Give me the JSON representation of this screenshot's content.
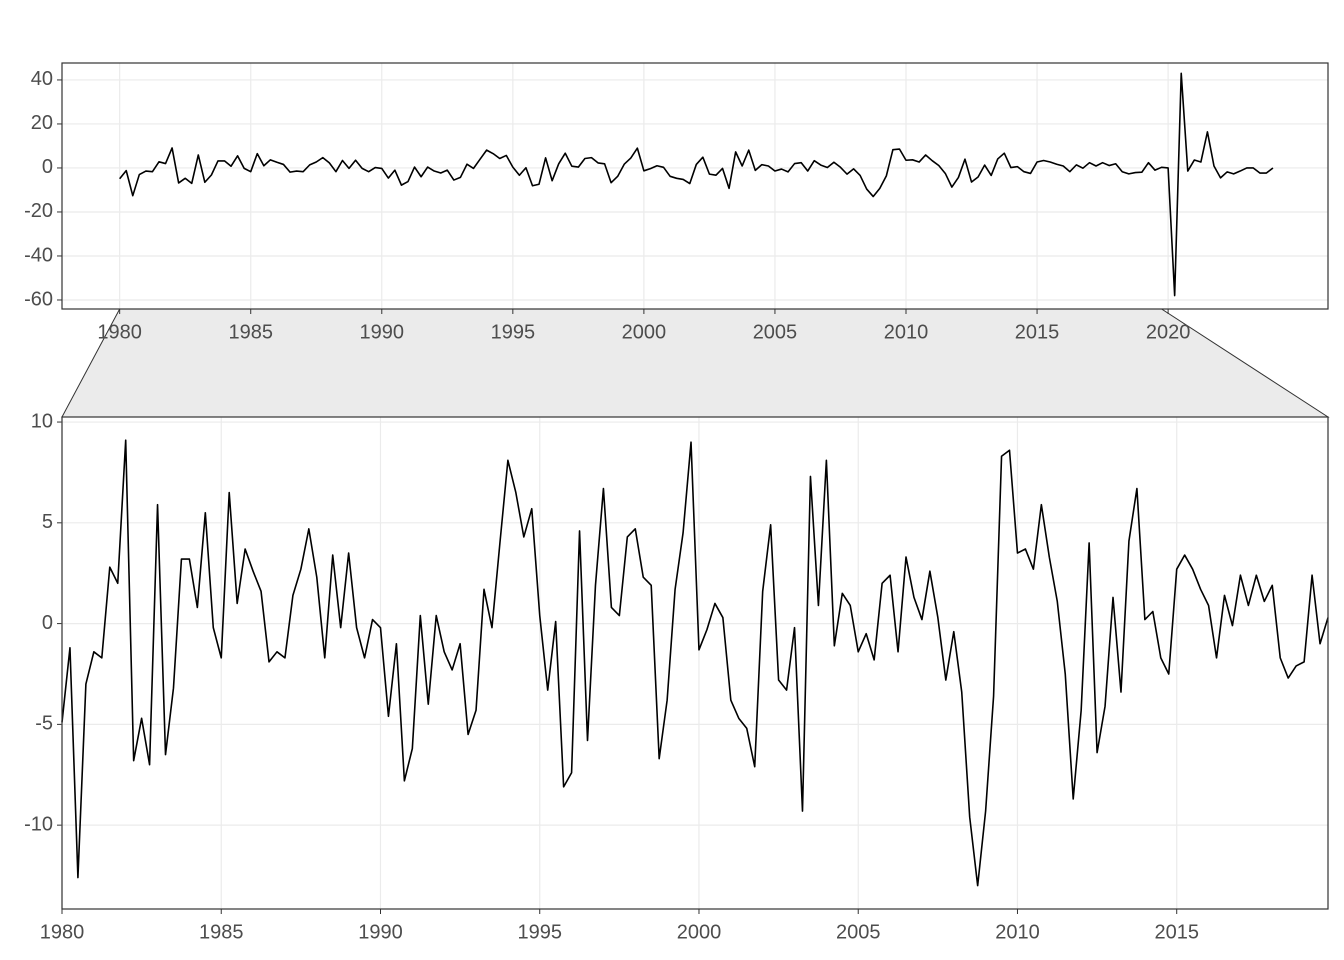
{
  "chart_data": [
    {
      "type": "line",
      "color": "#000000",
      "grid": true,
      "xlim": [
        1977.8,
        2026.1
      ],
      "ylim": [
        -64.1,
        47.7
      ],
      "xticks": [
        1980,
        1985,
        1990,
        1995,
        2000,
        2005,
        2010,
        2015,
        2020
      ],
      "yticks": [
        -60,
        -40,
        -20,
        0,
        20,
        40
      ],
      "x": [
        1980,
        1980.25,
        1980.5,
        1980.75,
        1981,
        1981.25,
        1981.5,
        1981.75,
        1982,
        1982.25,
        1982.5,
        1982.75,
        1983,
        1983.25,
        1983.5,
        1983.75,
        1984,
        1984.25,
        1984.5,
        1984.75,
        1985,
        1985.25,
        1985.5,
        1985.75,
        1986,
        1986.25,
        1986.5,
        1986.75,
        1987,
        1987.25,
        1987.5,
        1987.75,
        1988,
        1988.25,
        1988.5,
        1988.75,
        1989,
        1989.25,
        1989.5,
        1989.75,
        1990,
        1990.25,
        1990.5,
        1990.75,
        1991,
        1991.25,
        1991.5,
        1991.75,
        1992,
        1992.25,
        1992.5,
        1992.75,
        1993,
        1993.25,
        1993.5,
        1993.75,
        1994,
        1994.25,
        1994.5,
        1994.75,
        1995,
        1995.25,
        1995.5,
        1995.75,
        1996,
        1996.25,
        1996.5,
        1996.75,
        1997,
        1997.25,
        1997.5,
        1997.75,
        1998,
        1998.25,
        1998.5,
        1998.75,
        1999,
        1999.25,
        1999.5,
        1999.75,
        2000,
        2000.25,
        2000.5,
        2000.75,
        2001,
        2001.25,
        2001.5,
        2001.75,
        2002,
        2002.25,
        2002.5,
        2002.75,
        2003,
        2003.25,
        2003.5,
        2003.75,
        2004,
        2004.25,
        2004.5,
        2004.75,
        2005,
        2005.25,
        2005.5,
        2005.75,
        2006,
        2006.25,
        2006.5,
        2006.75,
        2007,
        2007.25,
        2007.5,
        2007.75,
        2008,
        2008.25,
        2008.5,
        2008.75,
        2009,
        2009.25,
        2009.5,
        2009.75,
        2010,
        2010.25,
        2010.5,
        2010.75,
        2011,
        2011.25,
        2011.5,
        2011.75,
        2012,
        2012.25,
        2012.5,
        2012.75,
        2013,
        2013.25,
        2013.5,
        2013.75,
        2014,
        2014.25,
        2014.5,
        2014.75,
        2015,
        2015.25,
        2015.5,
        2015.75,
        2016,
        2016.25,
        2016.5,
        2016.75,
        2017,
        2017.25,
        2017.5,
        2017.75,
        2018,
        2018.25,
        2018.5,
        2018.75,
        2019,
        2019.25,
        2019.5,
        2019.75,
        2020,
        2020.25,
        2020.5,
        2020.75,
        2021,
        2021.25,
        2021.5,
        2021.75,
        2022,
        2022.25,
        2022.5,
        2022.75,
        2023,
        2023.25,
        2023.5,
        2023.75,
        2024
      ],
      "values": [
        -4.9,
        -1.2,
        -12.6,
        -3.0,
        -1.4,
        -1.7,
        2.8,
        2.0,
        9.1,
        -6.8,
        -4.7,
        -7.0,
        5.9,
        -6.5,
        -3.2,
        3.2,
        3.2,
        0.8,
        5.5,
        -0.2,
        -1.7,
        6.5,
        1.0,
        3.7,
        2.6,
        1.6,
        -1.9,
        -1.4,
        -1.7,
        1.4,
        2.7,
        4.7,
        2.3,
        -1.7,
        3.4,
        -0.2,
        3.5,
        -0.2,
        -1.7,
        0.2,
        -0.2,
        -4.6,
        -1.0,
        -7.8,
        -6.2,
        0.4,
        -4.0,
        0.4,
        -1.4,
        -2.3,
        -1.0,
        -5.5,
        -4.3,
        1.7,
        -0.2,
        4.0,
        8.1,
        6.5,
        4.3,
        5.7,
        0.4,
        -3.3,
        0.1,
        -8.1,
        -7.4,
        4.6,
        -5.8,
        1.9,
        6.7,
        0.8,
        0.4,
        4.3,
        4.7,
        2.3,
        1.9,
        -6.7,
        -3.8,
        1.7,
        4.5,
        9.0,
        -1.3,
        -0.3,
        1.0,
        0.3,
        -3.8,
        -4.7,
        -5.2,
        -7.1,
        1.6,
        4.9,
        -2.8,
        -3.3,
        -0.2,
        -9.3,
        7.3,
        0.9,
        8.1,
        -1.1,
        1.5,
        0.9,
        -1.4,
        -0.5,
        -1.8,
        2.0,
        2.4,
        -1.4,
        3.3,
        1.3,
        0.2,
        2.6,
        0.3,
        -2.8,
        -0.4,
        -3.4,
        -9.6,
        -13.0,
        -9.3,
        -3.6,
        8.3,
        8.6,
        3.5,
        3.7,
        2.7,
        5.9,
        3.3,
        1.1,
        -2.5,
        -8.7,
        -4.3,
        4.0,
        -6.4,
        -4.1,
        1.3,
        -3.4,
        4.1,
        6.7,
        0.2,
        0.6,
        -1.7,
        -2.5,
        2.7,
        3.4,
        2.7,
        1.7,
        0.9,
        -1.7,
        1.4,
        -0.1,
        2.4,
        0.9,
        2.4,
        1.1,
        1.9,
        -1.7,
        -2.7,
        -2.1,
        -1.9,
        2.4,
        -1.0,
        0.3,
        0,
        -58,
        43,
        -1.4,
        3.6,
        2.7,
        16.4,
        0.9,
        -4.5,
        -1.8,
        -2.7,
        -1.4,
        0,
        0,
        -2.3,
        -2.3,
        0
      ]
    },
    {
      "type": "line",
      "color": "#000000",
      "grid": true,
      "xlim": [
        1980,
        2019.75
      ],
      "ylim": [
        -14.16,
        10.25
      ],
      "xticks": [
        1980,
        1985,
        1990,
        1995,
        2000,
        2005,
        2010,
        2015
      ],
      "yticks": [
        -10,
        -5,
        0,
        5,
        10
      ],
      "x": [
        1980,
        1980.25,
        1980.5,
        1980.75,
        1981,
        1981.25,
        1981.5,
        1981.75,
        1982,
        1982.25,
        1982.5,
        1982.75,
        1983,
        1983.25,
        1983.5,
        1983.75,
        1984,
        1984.25,
        1984.5,
        1984.75,
        1985,
        1985.25,
        1985.5,
        1985.75,
        1986,
        1986.25,
        1986.5,
        1986.75,
        1987,
        1987.25,
        1987.5,
        1987.75,
        1988,
        1988.25,
        1988.5,
        1988.75,
        1989,
        1989.25,
        1989.5,
        1989.75,
        1990,
        1990.25,
        1990.5,
        1990.75,
        1991,
        1991.25,
        1991.5,
        1991.75,
        1992,
        1992.25,
        1992.5,
        1992.75,
        1993,
        1993.25,
        1993.5,
        1993.75,
        1994,
        1994.25,
        1994.5,
        1994.75,
        1995,
        1995.25,
        1995.5,
        1995.75,
        1996,
        1996.25,
        1996.5,
        1996.75,
        1997,
        1997.25,
        1997.5,
        1997.75,
        1998,
        1998.25,
        1998.5,
        1998.75,
        1999,
        1999.25,
        1999.5,
        1999.75,
        2000,
        2000.25,
        2000.5,
        2000.75,
        2001,
        2001.25,
        2001.5,
        2001.75,
        2002,
        2002.25,
        2002.5,
        2002.75,
        2003,
        2003.25,
        2003.5,
        2003.75,
        2004,
        2004.25,
        2004.5,
        2004.75,
        2005,
        2005.25,
        2005.5,
        2005.75,
        2006,
        2006.25,
        2006.5,
        2006.75,
        2007,
        2007.25,
        2007.5,
        2007.75,
        2008,
        2008.25,
        2008.5,
        2008.75,
        2009,
        2009.25,
        2009.5,
        2009.75,
        2010,
        2010.25,
        2010.5,
        2010.75,
        2011,
        2011.25,
        2011.5,
        2011.75,
        2012,
        2012.25,
        2012.5,
        2012.75,
        2013,
        2013.25,
        2013.5,
        2013.75,
        2014,
        2014.25,
        2014.5,
        2014.75,
        2015,
        2015.25,
        2015.5,
        2015.75,
        2016,
        2016.25,
        2016.5,
        2016.75,
        2017,
        2017.25,
        2017.5,
        2017.75,
        2018,
        2018.25,
        2018.5,
        2018.75,
        2019,
        2019.25,
        2019.5,
        2019.75
      ],
      "values": [
        -4.9,
        -1.2,
        -12.6,
        -3.0,
        -1.4,
        -1.7,
        2.8,
        2.0,
        9.1,
        -6.8,
        -4.7,
        -7.0,
        5.9,
        -6.5,
        -3.2,
        3.2,
        3.2,
        0.8,
        5.5,
        -0.2,
        -1.7,
        6.5,
        1.0,
        3.7,
        2.6,
        1.6,
        -1.9,
        -1.4,
        -1.7,
        1.4,
        2.7,
        4.7,
        2.3,
        -1.7,
        3.4,
        -0.2,
        3.5,
        -0.2,
        -1.7,
        0.2,
        -0.2,
        -4.6,
        -1.0,
        -7.8,
        -6.2,
        0.4,
        -4.0,
        0.4,
        -1.4,
        -2.3,
        -1.0,
        -5.5,
        -4.3,
        1.7,
        -0.2,
        4.0,
        8.1,
        6.5,
        4.3,
        5.7,
        0.4,
        -3.3,
        0.1,
        -8.1,
        -7.4,
        4.6,
        -5.8,
        1.9,
        6.7,
        0.8,
        0.4,
        4.3,
        4.7,
        2.3,
        1.9,
        -6.7,
        -3.8,
        1.7,
        4.5,
        9.0,
        -1.3,
        -0.3,
        1.0,
        0.3,
        -3.8,
        -4.7,
        -5.2,
        -7.1,
        1.6,
        4.9,
        -2.8,
        -3.3,
        -0.2,
        -9.3,
        7.3,
        0.9,
        8.1,
        -1.1,
        1.5,
        0.9,
        -1.4,
        -0.5,
        -1.8,
        2.0,
        2.4,
        -1.4,
        3.3,
        1.3,
        0.2,
        2.6,
        0.3,
        -2.8,
        -0.4,
        -3.4,
        -9.6,
        -13.0,
        -9.3,
        -3.6,
        8.3,
        8.6,
        3.5,
        3.7,
        2.7,
        5.9,
        3.3,
        1.1,
        -2.5,
        -8.7,
        -4.3,
        4.0,
        -6.4,
        -4.1,
        1.3,
        -3.4,
        4.1,
        6.7,
        0.2,
        0.6,
        -1.7,
        -2.5,
        2.7,
        3.4,
        2.7,
        1.7,
        0.9,
        -1.7,
        1.4,
        -0.1,
        2.4,
        0.9,
        2.4,
        1.1,
        1.9,
        -1.7,
        -2.7,
        -2.1,
        -1.9,
        2.4,
        -1.0,
        0.3
      ]
    }
  ]
}
